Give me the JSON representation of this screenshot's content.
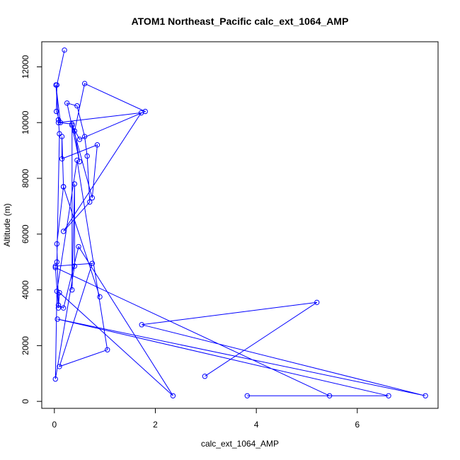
{
  "chart_data": {
    "type": "line",
    "title": "ATOM1 Northeast_Pacific calc_ext_1064_AMP",
    "xlabel": "calc_ext_1064_AMP",
    "ylabel": "Altitude (m)",
    "xlim": [
      -0.25,
      7.6
    ],
    "ylim": [
      -250,
      12900
    ],
    "x_ticks": [
      0,
      2,
      4,
      6
    ],
    "y_ticks": [
      0,
      2000,
      4000,
      6000,
      8000,
      10000,
      12000
    ],
    "x_tick_labels": [
      "0",
      "2",
      "4",
      "6"
    ],
    "y_tick_labels": [
      "0",
      "2000",
      "4000",
      "6000",
      "8000",
      "10000",
      "12000"
    ],
    "grid": false,
    "legend": "none",
    "series_color": "#0000ff",
    "series": [
      {
        "marker": "open-circle",
        "line": true,
        "x": [
          0.2,
          0.05,
          0.04,
          0.12,
          0.03,
          0.08,
          0.1,
          0.05,
          0.02,
          0.75,
          0.1,
          1.05,
          0.45,
          0.05,
          0.02,
          0.4,
          0.4,
          0.35,
          0.35,
          0.5,
          1.8,
          0.6,
          0.4,
          0.5,
          0.25,
          0.45,
          0.6,
          0.65,
          0.7,
          0.18,
          1.72,
          0.08,
          0.35,
          0.75,
          0.85,
          0.15,
          0.15,
          0.18,
          0.9,
          0.18,
          0.05,
          0.08,
          0.18,
          0.48,
          2.35,
          0.1,
          0.08,
          0.02,
          5.45,
          3.82,
          6.62,
          0.06,
          7.35,
          1.73,
          5.2,
          2.98
        ],
        "y": [
          12600,
          11350,
          10400,
          10000,
          11350,
          10100,
          9600,
          5000,
          4850,
          4950,
          1250,
          1850,
          8650,
          3950,
          800,
          4850,
          7800,
          4000,
          9900,
          9400,
          10400,
          11400,
          9700,
          8600,
          10700,
          10600,
          9500,
          8800,
          7150,
          6100,
          10350,
          10000,
          9950,
          7300,
          9200,
          8700,
          9500,
          7700,
          3750,
          7700,
          5650,
          3450,
          3350,
          5550,
          200,
          3900,
          3350,
          4800,
          200,
          200,
          200,
          2950,
          200,
          2750,
          3550,
          900
        ]
      }
    ]
  }
}
